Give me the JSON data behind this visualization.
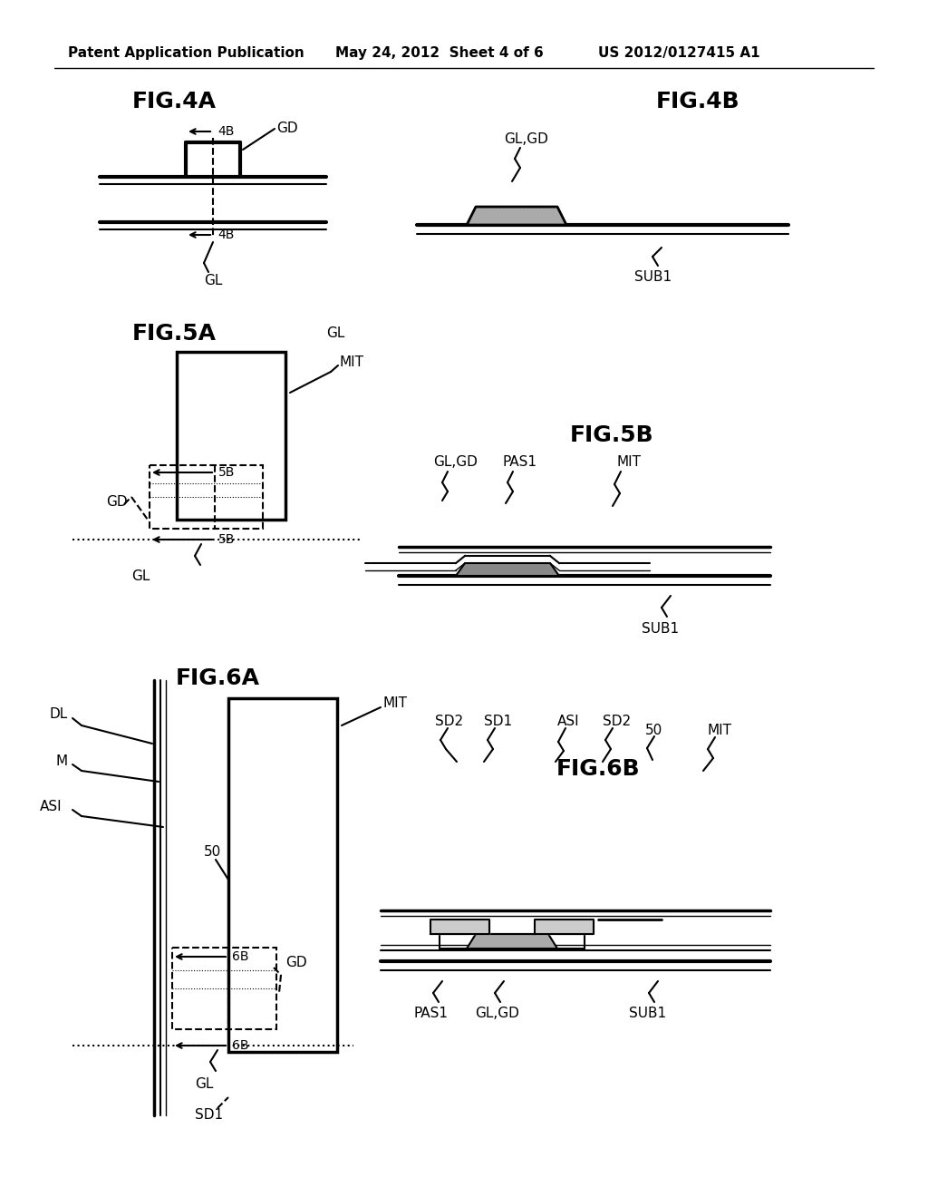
{
  "bg_color": "#ffffff",
  "line_color": "#000000",
  "header_left": "Patent Application Publication",
  "header_mid": "May 24, 2012  Sheet 4 of 6",
  "header_right": "US 2012/0127415 A1"
}
